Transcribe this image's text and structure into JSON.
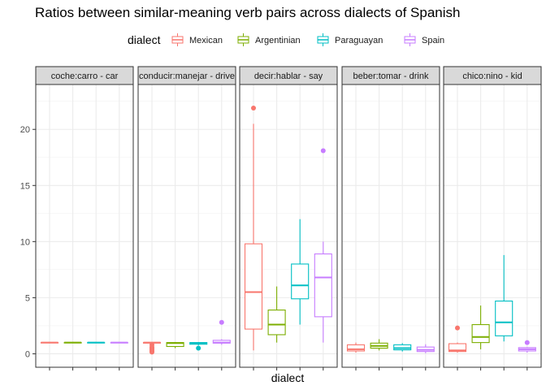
{
  "title": "Ratios between similar-meaning verb pairs across dialects of Spanish",
  "colors": {
    "Mexican": "#F8766D",
    "Argentinian": "#7CAE00",
    "Paraguayan": "#00BFC4",
    "Spain": "#C77CFF"
  },
  "chart_data": {
    "type": "boxplot",
    "title": "Ratios between similar-meaning verb pairs across dialects of Spanish",
    "xlabel": "dialect",
    "ylabel": "",
    "legend": {
      "title": "dialect",
      "position": "top",
      "entries": [
        "Mexican",
        "Argentinian",
        "Paraguayan",
        "Spain"
      ]
    },
    "ylim": [
      -1.2,
      24
    ],
    "yticks": [
      0,
      5,
      10,
      15,
      20
    ],
    "facets": [
      {
        "label": "coche:carro - car",
        "boxes": [
          {
            "dialect": "Mexican",
            "min": 0.95,
            "q1": 1.0,
            "median": 1.0,
            "q3": 1.0,
            "max": 1.05,
            "outliers": []
          },
          {
            "dialect": "Argentinian",
            "min": 0.95,
            "q1": 1.0,
            "median": 1.0,
            "q3": 1.0,
            "max": 1.05,
            "outliers": []
          },
          {
            "dialect": "Paraguayan",
            "min": 0.95,
            "q1": 1.0,
            "median": 1.0,
            "q3": 1.0,
            "max": 1.05,
            "outliers": []
          },
          {
            "dialect": "Spain",
            "min": 0.95,
            "q1": 1.0,
            "median": 1.0,
            "q3": 1.0,
            "max": 1.05,
            "outliers": []
          }
        ]
      },
      {
        "label": "conducir:manejar - drive",
        "boxes": [
          {
            "dialect": "Mexican",
            "min": 0.9,
            "q1": 0.95,
            "median": 1.0,
            "q3": 1.0,
            "max": 1.05,
            "outliers": [
              0.8,
              0.6,
              0.5,
              0.4,
              0.3,
              0.2,
              0.15
            ]
          },
          {
            "dialect": "Argentinian",
            "min": 0.5,
            "q1": 0.65,
            "median": 0.95,
            "q3": 1.0,
            "max": 1.05,
            "outliers": []
          },
          {
            "dialect": "Paraguayan",
            "min": 0.75,
            "q1": 0.85,
            "median": 0.95,
            "q3": 1.0,
            "max": 1.05,
            "outliers": [
              0.5
            ]
          },
          {
            "dialect": "Spain",
            "min": 0.8,
            "q1": 0.95,
            "median": 1.0,
            "q3": 1.2,
            "max": 1.3,
            "outliers": [
              2.8
            ]
          }
        ]
      },
      {
        "label": "decir:hablar - say",
        "boxes": [
          {
            "dialect": "Mexican",
            "min": 0.3,
            "q1": 2.2,
            "median": 5.5,
            "q3": 9.8,
            "max": 20.5,
            "outliers": [
              21.9
            ]
          },
          {
            "dialect": "Argentinian",
            "min": 1.0,
            "q1": 1.7,
            "median": 2.6,
            "q3": 3.9,
            "max": 6.0,
            "outliers": []
          },
          {
            "dialect": "Paraguayan",
            "min": 2.6,
            "q1": 4.9,
            "median": 6.1,
            "q3": 8.0,
            "max": 12.0,
            "outliers": []
          },
          {
            "dialect": "Spain",
            "min": 1.0,
            "q1": 3.3,
            "median": 6.8,
            "q3": 8.9,
            "max": 10.0,
            "outliers": [
              18.1
            ]
          }
        ]
      },
      {
        "label": "beber:tomar - drink",
        "boxes": [
          {
            "dialect": "Mexican",
            "min": 0.1,
            "q1": 0.25,
            "median": 0.4,
            "q3": 0.8,
            "max": 1.0,
            "outliers": []
          },
          {
            "dialect": "Argentinian",
            "min": 0.3,
            "q1": 0.5,
            "median": 0.7,
            "q3": 0.95,
            "max": 1.3,
            "outliers": []
          },
          {
            "dialect": "Paraguayan",
            "min": 0.2,
            "q1": 0.35,
            "median": 0.5,
            "q3": 0.8,
            "max": 0.95,
            "outliers": []
          },
          {
            "dialect": "Spain",
            "min": 0.05,
            "q1": 0.2,
            "median": 0.35,
            "q3": 0.6,
            "max": 0.85,
            "outliers": []
          }
        ]
      },
      {
        "label": "chico:nino - kid",
        "boxes": [
          {
            "dialect": "Mexican",
            "min": 0.1,
            "q1": 0.2,
            "median": 0.3,
            "q3": 0.9,
            "max": 1.0,
            "outliers": [
              2.3
            ]
          },
          {
            "dialect": "Argentinian",
            "min": 0.4,
            "q1": 1.0,
            "median": 1.5,
            "q3": 2.6,
            "max": 4.3,
            "outliers": []
          },
          {
            "dialect": "Paraguayan",
            "min": 1.1,
            "q1": 1.6,
            "median": 2.8,
            "q3": 4.7,
            "max": 8.8,
            "outliers": []
          },
          {
            "dialect": "Spain",
            "min": 0.1,
            "q1": 0.25,
            "median": 0.4,
            "q3": 0.55,
            "max": 0.6,
            "outliers": [
              1.0
            ]
          }
        ]
      }
    ]
  }
}
